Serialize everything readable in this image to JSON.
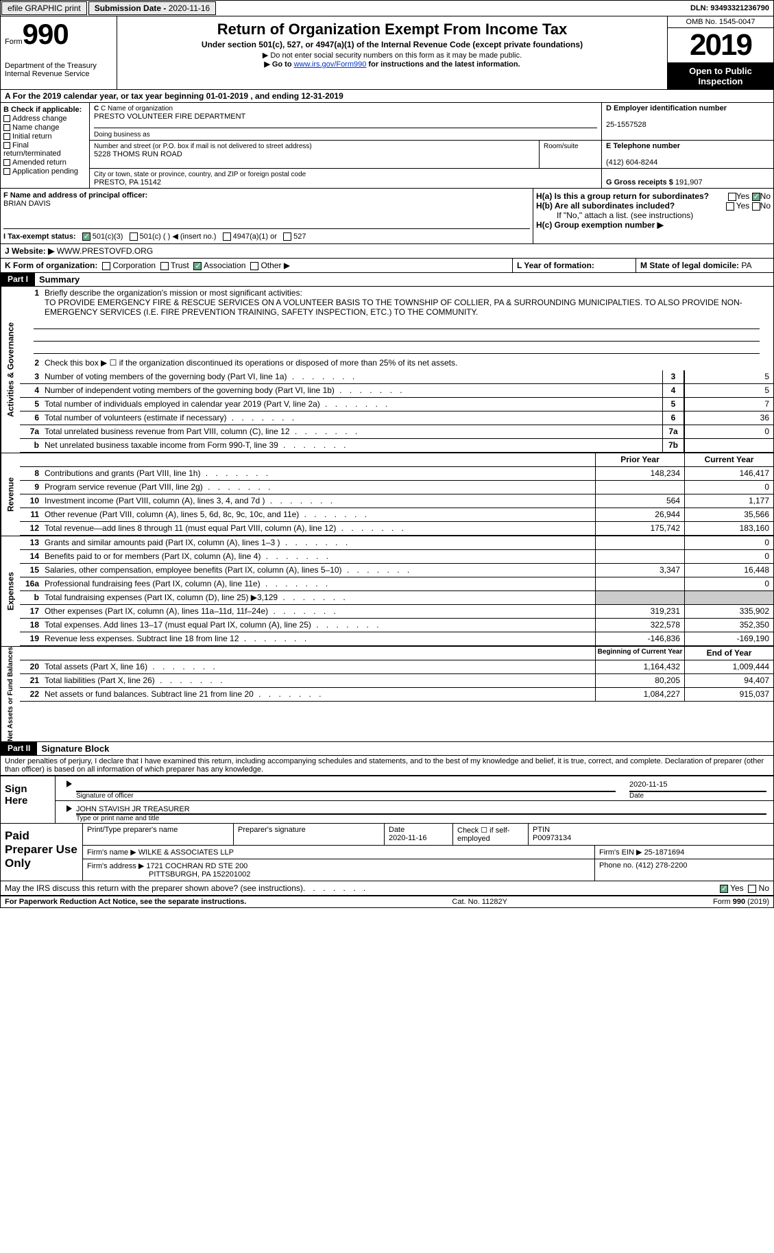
{
  "top": {
    "efile": "efile GRAPHIC print",
    "sub_date_lbl": "Submission Date - ",
    "sub_date": "2020-11-16",
    "dln_lbl": "DLN: ",
    "dln": "93493321236790"
  },
  "header": {
    "form_word": "Form",
    "form_num": "990",
    "dept": "Department of the Treasury\nInternal Revenue Service",
    "title": "Return of Organization Exempt From Income Tax",
    "sub1": "Under section 501(c), 527, or 4947(a)(1) of the Internal Revenue Code (except private foundations)",
    "sub2": "▶ Do not enter social security numbers on this form as it may be made public.",
    "sub3a": "▶ Go to ",
    "sub3link": "www.irs.gov/Form990",
    "sub3b": " for instructions and the latest information.",
    "omb": "OMB No. 1545-0047",
    "year": "2019",
    "inspect": "Open to Public Inspection"
  },
  "rowA": "A For the 2019 calendar year, or tax year beginning 01-01-2019   , and ending 12-31-2019",
  "B": {
    "hdr": "B Check if applicable:",
    "items": [
      "Address change",
      "Name change",
      "Initial return",
      "Final return/terminated",
      "Amended return",
      "Application pending"
    ]
  },
  "C": {
    "name_lbl": "C Name of organization",
    "name": "PRESTO VOLUNTEER FIRE DEPARTMENT",
    "dba_lbl": "Doing business as",
    "addr_lbl": "Number and street (or P.O. box if mail is not delivered to street address)",
    "room_lbl": "Room/suite",
    "addr": "5228 THOMS RUN ROAD",
    "city_lbl": "City or town, state or province, country, and ZIP or foreign postal code",
    "city": "PRESTO, PA  15142"
  },
  "D": {
    "lbl": "D Employer identification number",
    "val": "25-1557528"
  },
  "E": {
    "lbl": "E Telephone number",
    "val": "(412) 604-8244"
  },
  "G": {
    "lbl": "G Gross receipts $",
    "val": "191,907"
  },
  "F": {
    "lbl": "F  Name and address of principal officer:",
    "val": "BRIAN DAVIS"
  },
  "H": {
    "a": "H(a)  Is this a group return for subordinates?",
    "b": "H(b)  Are all subordinates included?",
    "note": "If \"No,\" attach a list. (see instructions)",
    "c": "H(c)  Group exemption number ▶",
    "yes": "Yes",
    "no": "No"
  },
  "I": {
    "lbl": "I   Tax-exempt status:",
    "opts": [
      "501(c)(3)",
      "501(c) (  ) ◀ (insert no.)",
      "4947(a)(1) or",
      "527"
    ]
  },
  "J": {
    "lbl": "J   Website: ▶",
    "val": "WWW.PRESTOVFD.ORG"
  },
  "K": {
    "lbl": "K Form of organization:",
    "opts": [
      "Corporation",
      "Trust",
      "Association",
      "Other ▶"
    ],
    "checked": 2
  },
  "L": {
    "lbl": "L Year of formation:"
  },
  "M": {
    "lbl": "M State of legal domicile:",
    "val": "PA"
  },
  "part1": {
    "hdr": "Part I",
    "title": "Summary"
  },
  "governance": {
    "vtab": "Activities & Governance",
    "l1": "Briefly describe the organization's mission or most significant activities:",
    "mission": "TO PROVIDE EMERGENCY FIRE & RESCUE SERVICES ON A VOLUNTEER BASIS TO THE TOWNSHIP OF COLLIER, PA & SURROUNDING MUNICIPALTIES. TO ALSO PROVIDE NON- EMERGENCY SERVICES (I.E. FIRE PREVENTION TRAINING, SAFETY INSPECTION, ETC.) TO THE COMMUNITY.",
    "l2": "Check this box ▶ ☐  if the organization discontinued its operations or disposed of more than 25% of its net assets.",
    "rows": [
      {
        "n": "3",
        "t": "Number of voting members of the governing body (Part VI, line 1a)",
        "box": "3",
        "v": "5"
      },
      {
        "n": "4",
        "t": "Number of independent voting members of the governing body (Part VI, line 1b)",
        "box": "4",
        "v": "5"
      },
      {
        "n": "5",
        "t": "Total number of individuals employed in calendar year 2019 (Part V, line 2a)",
        "box": "5",
        "v": "7"
      },
      {
        "n": "6",
        "t": "Total number of volunteers (estimate if necessary)",
        "box": "6",
        "v": "36"
      },
      {
        "n": "7a",
        "t": "Total unrelated business revenue from Part VIII, column (C), line 12",
        "box": "7a",
        "v": "0"
      },
      {
        "n": "b",
        "t": "Net unrelated business taxable income from Form 990-T, line 39",
        "box": "7b",
        "v": ""
      }
    ]
  },
  "revenue": {
    "vtab": "Revenue",
    "prior": "Prior Year",
    "curr": "Current Year",
    "rows": [
      {
        "n": "8",
        "t": "Contributions and grants (Part VIII, line 1h)",
        "p": "148,234",
        "c": "146,417"
      },
      {
        "n": "9",
        "t": "Program service revenue (Part VIII, line 2g)",
        "p": "",
        "c": "0"
      },
      {
        "n": "10",
        "t": "Investment income (Part VIII, column (A), lines 3, 4, and 7d )",
        "p": "564",
        "c": "1,177"
      },
      {
        "n": "11",
        "t": "Other revenue (Part VIII, column (A), lines 5, 6d, 8c, 9c, 10c, and 11e)",
        "p": "26,944",
        "c": "35,566"
      },
      {
        "n": "12",
        "t": "Total revenue—add lines 8 through 11 (must equal Part VIII, column (A), line 12)",
        "p": "175,742",
        "c": "183,160"
      }
    ]
  },
  "expenses": {
    "vtab": "Expenses",
    "rows": [
      {
        "n": "13",
        "t": "Grants and similar amounts paid (Part IX, column (A), lines 1–3 )",
        "p": "",
        "c": "0"
      },
      {
        "n": "14",
        "t": "Benefits paid to or for members (Part IX, column (A), line 4)",
        "p": "",
        "c": "0"
      },
      {
        "n": "15",
        "t": "Salaries, other compensation, employee benefits (Part IX, column (A), lines 5–10)",
        "p": "3,347",
        "c": "16,448"
      },
      {
        "n": "16a",
        "t": "Professional fundraising fees (Part IX, column (A), line 11e)",
        "p": "",
        "c": "0"
      },
      {
        "n": "b",
        "t": "Total fundraising expenses (Part IX, column (D), line 25) ▶3,129",
        "p": "SHADE",
        "c": "SHADE"
      },
      {
        "n": "17",
        "t": "Other expenses (Part IX, column (A), lines 11a–11d, 11f–24e)",
        "p": "319,231",
        "c": "335,902"
      },
      {
        "n": "18",
        "t": "Total expenses. Add lines 13–17 (must equal Part IX, column (A), line 25)",
        "p": "322,578",
        "c": "352,350"
      },
      {
        "n": "19",
        "t": "Revenue less expenses. Subtract line 18 from line 12",
        "p": "-146,836",
        "c": "-169,190"
      }
    ]
  },
  "balances": {
    "vtab": "Net Assets or Fund Balances",
    "beg": "Beginning of Current Year",
    "end": "End of Year",
    "rows": [
      {
        "n": "20",
        "t": "Total assets (Part X, line 16)",
        "p": "1,164,432",
        "c": "1,009,444"
      },
      {
        "n": "21",
        "t": "Total liabilities (Part X, line 26)",
        "p": "80,205",
        "c": "94,407"
      },
      {
        "n": "22",
        "t": "Net assets or fund balances. Subtract line 21 from line 20",
        "p": "1,084,227",
        "c": "915,037"
      }
    ]
  },
  "part2": {
    "hdr": "Part II",
    "title": "Signature Block",
    "decl": "Under penalties of perjury, I declare that I have examined this return, including accompanying schedules and statements, and to the best of my knowledge and belief, it is true, correct, and complete. Declaration of preparer (other than officer) is based on all information of which preparer has any knowledge."
  },
  "sign": {
    "lbl": "Sign Here",
    "sig_lbl": "Signature of officer",
    "date_lbl": "Date",
    "date": "2020-11-15",
    "name": "JOHN STAVISH JR TREASURER",
    "name_lbl": "Type or print name and title"
  },
  "prep": {
    "lbl": "Paid Preparer Use Only",
    "h": [
      "Print/Type preparer's name",
      "Preparer's signature",
      "Date",
      "Check ☐ if self-employed",
      "PTIN"
    ],
    "date": "2020-11-16",
    "ptin": "P00973134",
    "firm_lbl": "Firm's name  ▶",
    "firm": "WILKE & ASSOCIATES LLP",
    "ein_lbl": "Firm's EIN ▶",
    "ein": "25-1871694",
    "addr_lbl": "Firm's address ▶",
    "addr1": "1721 COCHRAN RD STE 200",
    "addr2": "PITTSBURGH, PA  152201002",
    "phone_lbl": "Phone no.",
    "phone": "(412) 278-2200"
  },
  "discuss": "May the IRS discuss this return with the preparer shown above? (see instructions)",
  "foot": {
    "l": "For Paperwork Reduction Act Notice, see the separate instructions.",
    "m": "Cat. No. 11282Y",
    "r": "Form 990 (2019)"
  }
}
